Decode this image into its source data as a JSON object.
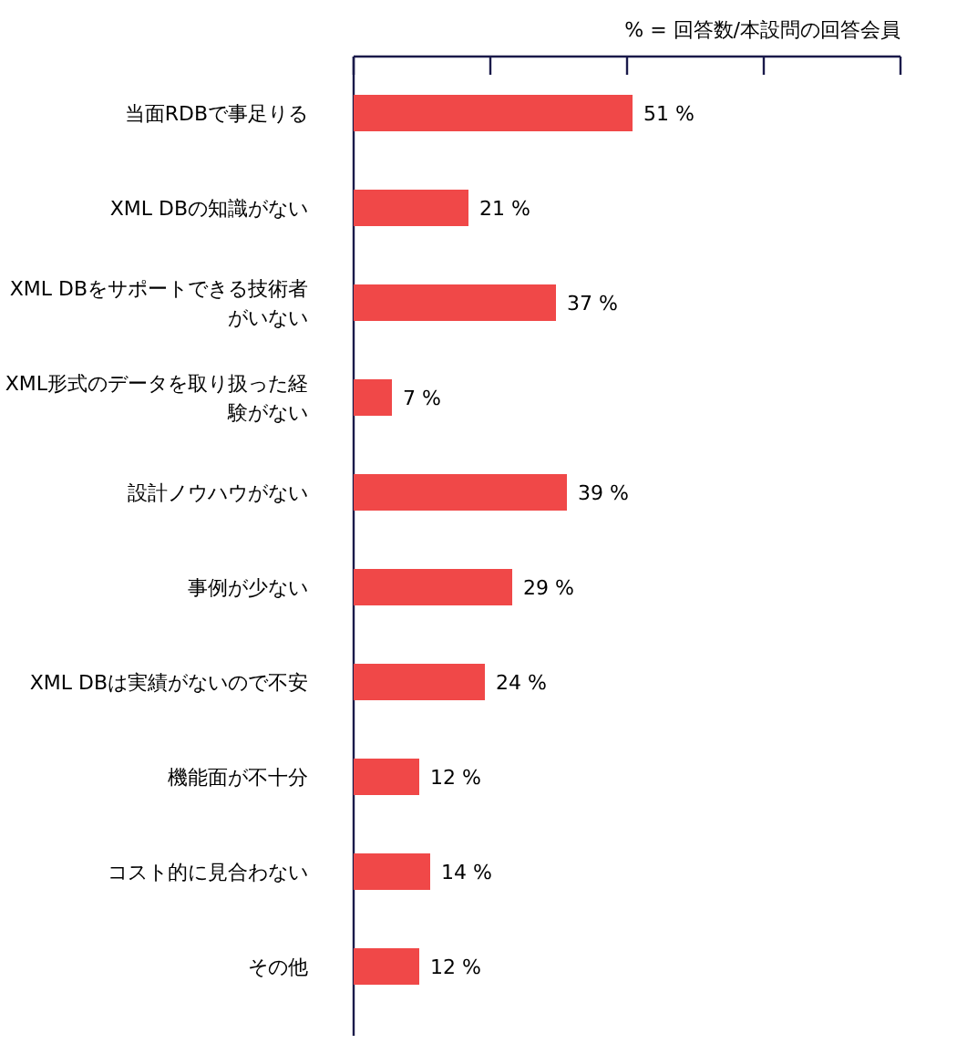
{
  "chart_data": {
    "type": "bar",
    "orientation": "horizontal",
    "annotations": [
      "% = 回答数/本設問の回答会員"
    ],
    "categories": [
      "当面RDBで事足りる",
      "XML DBの知識がない",
      "XML DBをサポートできる技術者がいない",
      "XML形式のデータを取り扱った経験がない",
      "設計ノウハウがない",
      "事例が少ない",
      "XML DBは実績がないので不安",
      "機能面が不十分",
      "コスト的に見合わない",
      "その他"
    ],
    "values": [
      51,
      21,
      37,
      7,
      39,
      29,
      24,
      12,
      14,
      12
    ],
    "value_labels": [
      "51 %",
      "21 %",
      "37 %",
      "7 %",
      "39 %",
      "29 %",
      "24 %",
      "12 %",
      "14 %",
      "12 %"
    ],
    "color": "#f04848",
    "xlim": [
      0,
      100
    ],
    "xticks": [
      {
        "value": 0,
        "label": null
      },
      {
        "value": 25,
        "label": null
      },
      {
        "value": 50,
        "label": null
      },
      {
        "value": 75,
        "label": null
      },
      {
        "value": 100,
        "label": null
      }
    ],
    "tick_labels": "y"
  }
}
